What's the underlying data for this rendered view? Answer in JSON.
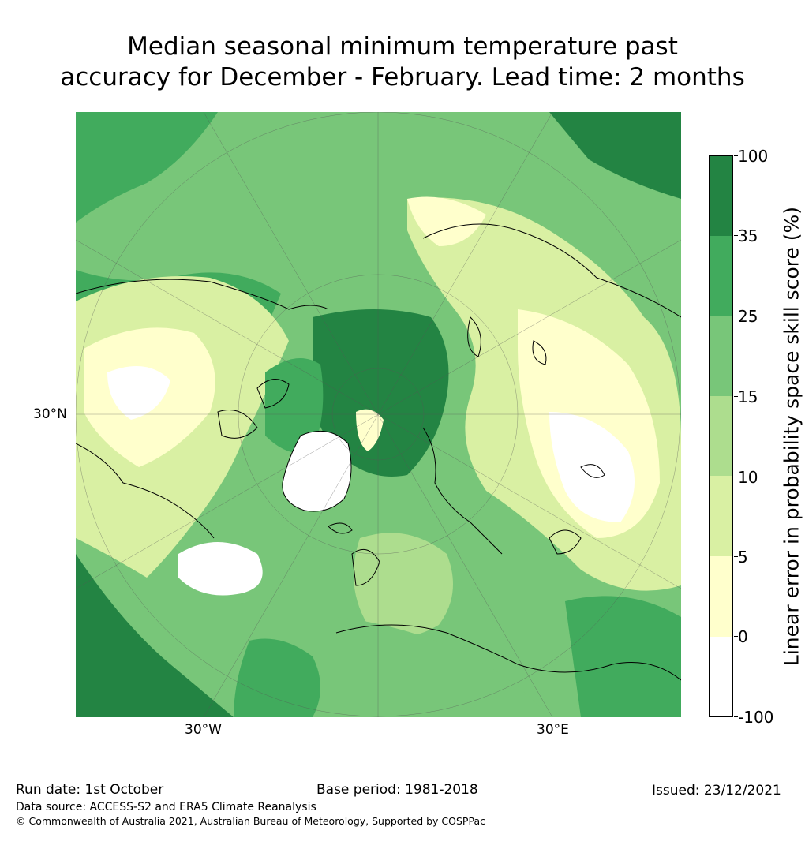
{
  "title": {
    "line1": "Median seasonal minimum temperature past",
    "line2": "accuracy for December - February. Lead time: 2 months"
  },
  "map": {
    "projection": "north-polar-stereographic",
    "lat_label": "30°N",
    "lon_labels": [
      "30°W",
      "30°E"
    ]
  },
  "colorbar": {
    "title": "Linear error in probability space skill score (%)",
    "bins": [
      {
        "from": "-100",
        "to": "0",
        "color": "#ffffff"
      },
      {
        "from": "0",
        "to": "5",
        "color": "#ffffcc"
      },
      {
        "from": "5",
        "to": "10",
        "color": "#d9f0a3"
      },
      {
        "from": "10",
        "to": "15",
        "color": "#addd8e"
      },
      {
        "from": "15",
        "to": "25",
        "color": "#78c679"
      },
      {
        "from": "25",
        "to": "35",
        "color": "#41ab5d"
      },
      {
        "from": "35",
        "to": "100",
        "color": "#238443"
      }
    ],
    "tick_labels": [
      "100",
      "35",
      "25",
      "15",
      "10",
      "5",
      "0",
      "-100"
    ]
  },
  "footer": {
    "run_date": "Run date: 1st October",
    "base_period": "Base period: 1981-2018",
    "issued": "Issued: 23/12/2021",
    "data_source": "Data source: ACCESS-S2 and ERA5 Climate Reanalysis",
    "copyright": "© Commonwealth of Australia 2021, Australian Bureau of Meteorology, Supported by COSPPac"
  }
}
